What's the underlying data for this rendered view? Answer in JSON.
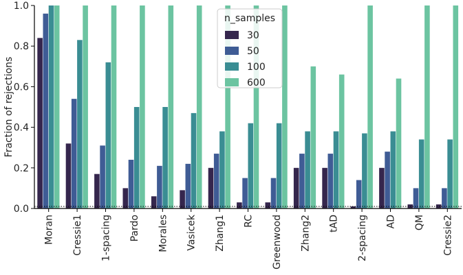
{
  "chart_data": {
    "type": "bar",
    "title": "",
    "xlabel": "",
    "ylabel": "Fraction of rejections",
    "ylim": [
      0,
      1.0
    ],
    "yticks": [
      "0.0",
      "0.2",
      "0.4",
      "0.6",
      "0.8",
      "1.0"
    ],
    "reference_line": {
      "y": 0.01,
      "style": "dotted",
      "color": "#000000"
    },
    "categories": [
      "Moran",
      "Cressie1",
      "1-spacing",
      "Pardo",
      "Morales",
      "Vasicek",
      "Zhang1",
      "RC",
      "Greenwood",
      "Zhang2",
      "tAD",
      "2-spacing",
      "AD",
      "QM",
      "Cressie2"
    ],
    "legend": {
      "title": "n_samples",
      "placement": "top-center"
    },
    "series": [
      {
        "name": "30",
        "color": "#35264d",
        "values": [
          0.84,
          0.32,
          0.17,
          0.1,
          0.06,
          0.09,
          0.2,
          0.03,
          0.03,
          0.2,
          0.2,
          0.01,
          0.2,
          0.02,
          0.02
        ]
      },
      {
        "name": "50",
        "color": "#3f5c95",
        "values": [
          0.96,
          0.54,
          0.31,
          0.24,
          0.21,
          0.22,
          0.27,
          0.15,
          0.15,
          0.27,
          0.27,
          0.14,
          0.28,
          0.1,
          0.1
        ]
      },
      {
        "name": "100",
        "color": "#3a8d93",
        "values": [
          1.0,
          0.83,
          0.72,
          0.5,
          0.5,
          0.47,
          0.38,
          0.42,
          0.42,
          0.38,
          0.38,
          0.37,
          0.38,
          0.34,
          0.34
        ]
      },
      {
        "name": "600",
        "color": "#6cc4a1",
        "values": [
          1.0,
          1.0,
          1.0,
          1.0,
          1.0,
          1.0,
          1.0,
          1.0,
          1.0,
          0.7,
          0.66,
          1.0,
          0.64,
          1.0,
          1.0
        ]
      }
    ]
  }
}
